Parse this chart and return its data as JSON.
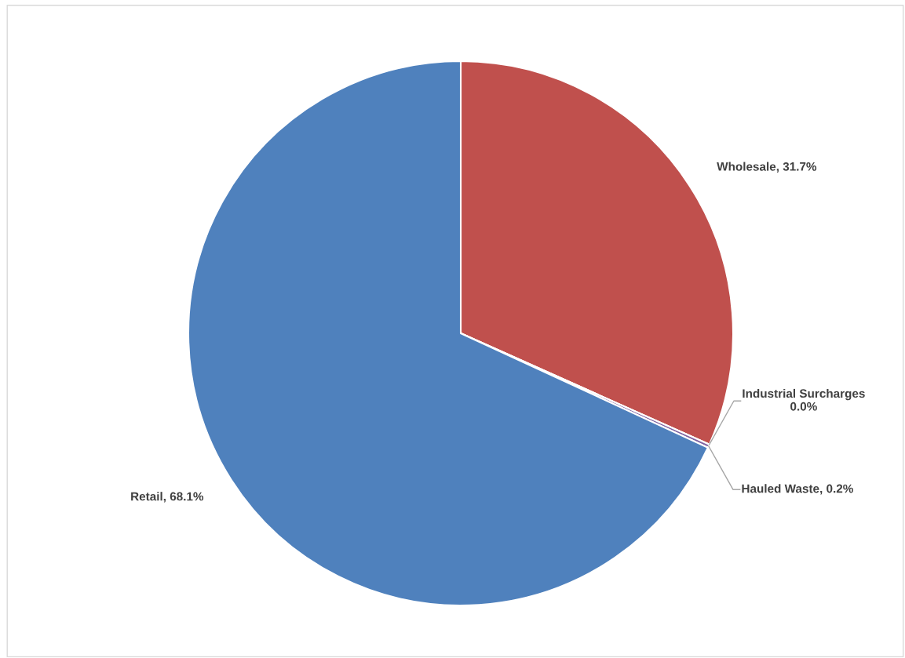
{
  "chart_data": {
    "type": "pie",
    "categories": [
      "Wholesale",
      "Industrial Surcharges",
      "Hauled Waste",
      "Retail"
    ],
    "values": [
      31.7,
      0.0,
      0.2,
      68.1
    ],
    "colors": [
      "#c0504d",
      "#9bbb59",
      "#8064a2",
      "#4f81bd"
    ],
    "value_labels": [
      "31.7%",
      "0.0%",
      "0.2%",
      "68.1%"
    ]
  }
}
